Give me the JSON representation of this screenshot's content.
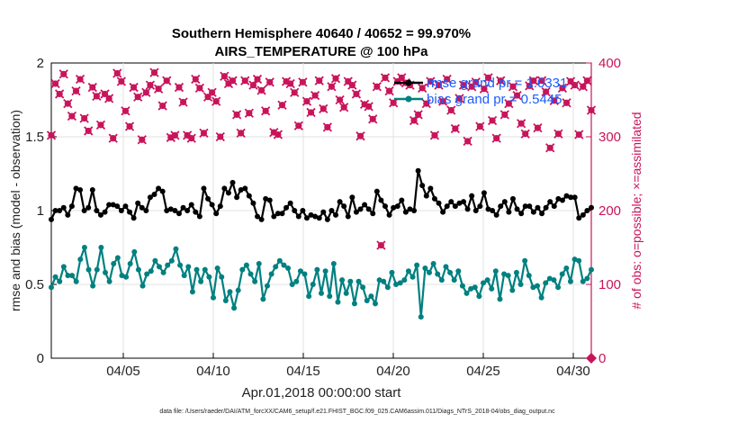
{
  "chart_data": {
    "type": "line",
    "title_line1": "Southern Hemisphere 40640 / 40652 = 99.970%",
    "title_line2": "AIRS_TEMPERATURE @ 100 hPa",
    "xlabel": "Apr.01,2018 00:00:00 start",
    "ylabel_left": "rmse and bias (model - observation)",
    "ylabel_right": "# of obs: o=possible; ×=assimilated",
    "footnote": "data file: /Users/raeder/DAI/ATM_forcXX/CAM6_setup/f.e21.FHIST_BGC.f09_025.CAM6assim.011/Diags_NTrS_2018-04/obs_diag_output.nc",
    "x_tick_labels": [
      "04/05",
      "04/10",
      "04/15",
      "04/20",
      "04/25",
      "04/30"
    ],
    "x_tick_days": [
      5,
      10,
      15,
      20,
      25,
      30
    ],
    "xlim_days": [
      1,
      31
    ],
    "ylim_left": [
      0,
      2
    ],
    "yticks_left": [
      "0",
      "0.5",
      "1",
      "1.5",
      "2"
    ],
    "ylim_right": [
      0,
      400
    ],
    "yticks_right": [
      "0",
      "100",
      "200",
      "300",
      "400"
    ],
    "legend": [
      {
        "label": "rmse grand pr = 1.0331",
        "color": "#000000"
      },
      {
        "label": "bias grand pr = 0.5445",
        "color": "#008080"
      }
    ],
    "series": [
      {
        "name": "rmse",
        "axis": "left",
        "color": "#000000",
        "values": [
          0.94,
          1.0,
          1.0,
          1.02,
          0.97,
          1.03,
          1.15,
          1.14,
          1.0,
          1.02,
          1.14,
          1.0,
          0.97,
          0.99,
          1.04,
          1.04,
          1.03,
          1.0,
          1.03,
          0.99,
          0.95,
          1.05,
          1.02,
          1.0,
          1.09,
          1.11,
          1.15,
          1.13,
          1.0,
          1.01,
          1.0,
          0.98,
          1.02,
          1.0,
          1.04,
          0.99,
          0.96,
          1.15,
          1.08,
          1.04,
          0.98,
          1.03,
          1.15,
          1.12,
          1.19,
          1.09,
          1.14,
          1.15,
          1.1,
          1.05,
          0.96,
          0.94,
          1.08,
          1.07,
          0.96,
          0.98,
          0.98,
          1.02,
          1.05,
          1.0,
          0.96,
          1.0,
          0.95,
          0.97,
          0.96,
          0.95,
          0.99,
          0.94,
          1.0,
          0.97,
          1.06,
          1.03,
          0.96,
          1.09,
          0.99,
          1.01,
          1.04,
          1.01,
          0.98,
          1.13,
          1.07,
          1.03,
          0.97,
          1.02,
          1.03,
          1.07,
          0.99,
          1.01,
          1.0,
          1.27,
          1.17,
          1.1,
          1.15,
          1.08,
          1.05,
          0.99,
          1.03,
          1.06,
          1.03,
          1.05,
          1.06,
          1.01,
          1.1,
          1.0,
          1.03,
          1.12,
          1.01,
          1.0,
          0.97,
          1.03,
          1.06,
          0.99,
          1.08,
          1.01,
          0.98,
          1.03,
          1.03,
          0.99,
          1.02,
          0.98,
          1.02,
          1.06,
          1.03,
          1.08,
          1.07,
          1.1,
          1.09,
          1.09,
          0.95,
          0.97,
          1.0,
          1.02
        ]
      },
      {
        "name": "bias",
        "axis": "left",
        "color": "#008080",
        "values": [
          0.48,
          0.55,
          0.52,
          0.62,
          0.56,
          0.56,
          0.52,
          0.67,
          0.75,
          0.6,
          0.49,
          0.6,
          0.75,
          0.58,
          0.52,
          0.64,
          0.68,
          0.56,
          0.55,
          0.64,
          0.72,
          0.6,
          0.49,
          0.57,
          0.59,
          0.66,
          0.62,
          0.58,
          0.63,
          0.66,
          0.74,
          0.63,
          0.56,
          0.62,
          0.45,
          0.6,
          0.52,
          0.6,
          0.55,
          0.41,
          0.61,
          0.55,
          0.39,
          0.45,
          0.34,
          0.46,
          0.6,
          0.63,
          0.57,
          0.52,
          0.64,
          0.4,
          0.49,
          0.57,
          0.62,
          0.66,
          0.63,
          0.61,
          0.5,
          0.52,
          0.59,
          0.57,
          0.42,
          0.5,
          0.6,
          0.44,
          0.59,
          0.42,
          0.64,
          0.38,
          0.53,
          0.44,
          0.52,
          0.37,
          0.52,
          0.48,
          0.39,
          0.42,
          0.37,
          0.53,
          0.52,
          0.48,
          0.58,
          0.5,
          0.51,
          0.53,
          0.59,
          0.55,
          0.63,
          0.28,
          0.61,
          0.58,
          0.64,
          0.57,
          0.53,
          0.62,
          0.58,
          0.53,
          0.59,
          0.49,
          0.44,
          0.47,
          0.48,
          0.42,
          0.51,
          0.53,
          0.47,
          0.59,
          0.4,
          0.57,
          0.56,
          0.46,
          0.58,
          0.5,
          0.66,
          0.56,
          0.48,
          0.49,
          0.41,
          0.51,
          0.54,
          0.53,
          0.48,
          0.57,
          0.61,
          0.52,
          0.67,
          0.66,
          0.52,
          0.54,
          0.6
        ]
      },
      {
        "name": "obs possible/assimilated",
        "axis": "right",
        "color": "#c8145a",
        "values": [
          302,
          372,
          358,
          385,
          345,
          328,
          362,
          378,
          325,
          308,
          367,
          355,
          316,
          358,
          352,
          298,
          386,
          375,
          335,
          314,
          367,
          354,
          296,
          360,
          370,
          387,
          365,
          342,
          376,
          299,
          302,
          367,
          347,
          302,
          298,
          378,
          366,
          305,
          354,
          360,
          348,
          300,
          382,
          372,
          376,
          330,
          305,
          376,
          332,
          370,
          378,
          363,
          335,
          374,
          306,
          303,
          343,
          375,
          372,
          360,
          315,
          374,
          348,
          333,
          356,
          376,
          338,
          313,
          368,
          379,
          350,
          340,
          375,
          370,
          358,
          301,
          344,
          341,
          324,
          368,
          153,
          380,
          362,
          346,
          375,
          380,
          373,
          370,
          322,
          330,
          366,
          345,
          375,
          302,
          370,
          348,
          378,
          336,
          311,
          352,
          370,
          294,
          368,
          374,
          314,
          365,
          380,
          322,
          298,
          376,
          330,
          345,
          368,
          356,
          318,
          304,
          369,
          376,
          312,
          376,
          361,
          285,
          349,
          304,
          366,
          346,
          375,
          370,
          303,
          368,
          376,
          336
        ]
      }
    ]
  }
}
